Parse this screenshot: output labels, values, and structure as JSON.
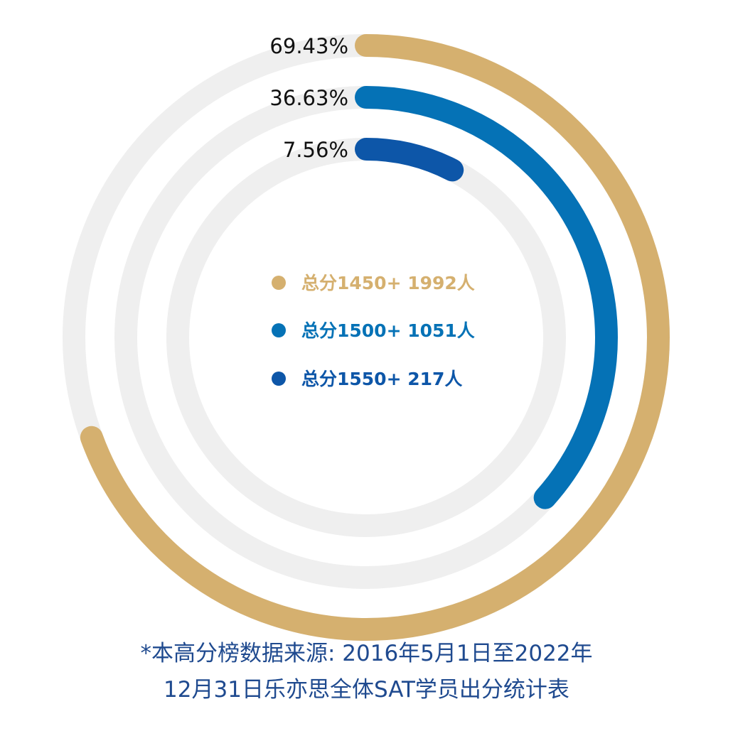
{
  "chart_data": {
    "type": "radial-bar",
    "max_percent": 100,
    "colors": {
      "track": "#efefef"
    },
    "series": [
      {
        "label": "69.43%",
        "value": 69.43,
        "color": "#d5b06f",
        "legend": {
          "prefix": "总分",
          "score": "1450+",
          "count": "1992人"
        }
      },
      {
        "label": "36.63%",
        "value": 36.63,
        "color": "#0572b6",
        "legend": {
          "prefix": "总分",
          "score": "1500+",
          "count": "1051人"
        }
      },
      {
        "label": "7.56%",
        "value": 7.56,
        "color": "#0d56a8",
        "legend": {
          "prefix": "总分",
          "score": "1550+",
          "count": "217人"
        }
      }
    ]
  },
  "footnote": {
    "line1": "*本高分榜数据来源: 2016年5月1日至2022年",
    "line2": "12月31日乐亦思全体SAT学员出分统计表"
  }
}
